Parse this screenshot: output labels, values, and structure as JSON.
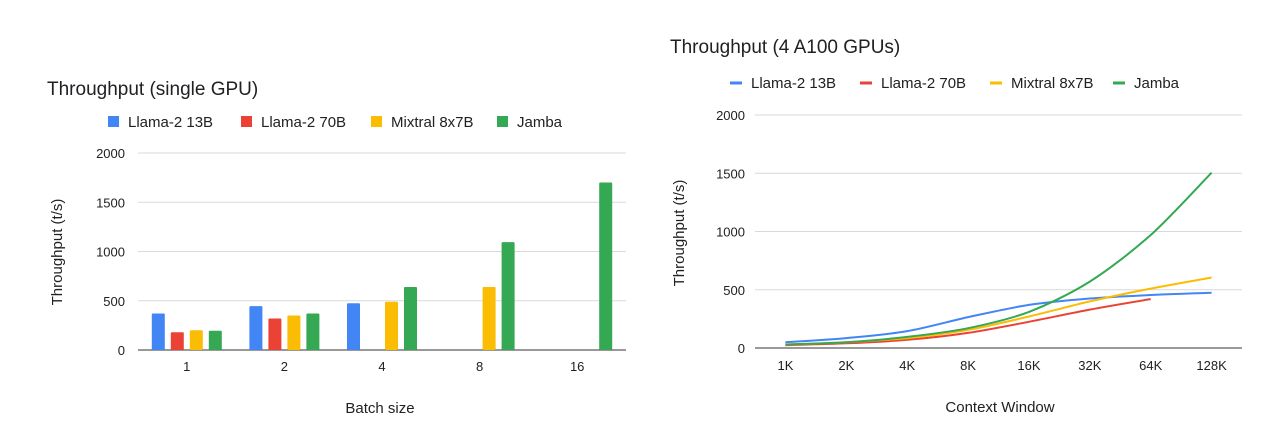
{
  "chart_data": [
    {
      "type": "bar",
      "title": "Throughput (single GPU)",
      "xlabel": "Batch size",
      "ylabel": "Throughput (t/s)",
      "ylim": [
        0,
        2000
      ],
      "yticks": [
        "0",
        "500",
        "1000",
        "1500",
        "2000"
      ],
      "categories": [
        "1",
        "2",
        "4",
        "8",
        "16"
      ],
      "legend_position": "top",
      "grid": true,
      "series": [
        {
          "name": "Llama-2 13B",
          "color": "#4285F4",
          "values": [
            370,
            445,
            475,
            null,
            null
          ]
        },
        {
          "name": "Llama-2 70B",
          "color": "#EA4335",
          "values": [
            180,
            320,
            null,
            null,
            null
          ]
        },
        {
          "name": "Mixtral 8x7B",
          "color": "#FBBC04",
          "values": [
            200,
            350,
            490,
            640,
            null
          ]
        },
        {
          "name": "Jamba",
          "color": "#34A853",
          "values": [
            195,
            370,
            640,
            1095,
            1700
          ]
        }
      ]
    },
    {
      "type": "line",
      "title": "Throughput (4 A100 GPUs)",
      "xlabel": "Context Window",
      "ylabel": "Throughput (t/s)",
      "ylim": [
        0,
        2000
      ],
      "yticks": [
        "0",
        "500",
        "1000",
        "1500",
        "2000"
      ],
      "categories": [
        "1K",
        "2K",
        "4K",
        "8K",
        "16K",
        "32K",
        "64K",
        "128K"
      ],
      "legend_position": "top",
      "grid": true,
      "series": [
        {
          "name": "Llama-2 13B",
          "color": "#4285F4",
          "values": [
            50,
            85,
            145,
            265,
            370,
            425,
            455,
            475
          ]
        },
        {
          "name": "Llama-2 70B",
          "color": "#EA4335",
          "values": [
            25,
            40,
            70,
            130,
            225,
            330,
            420,
            null
          ]
        },
        {
          "name": "Mixtral 8x7B",
          "color": "#FBBC04",
          "values": [
            30,
            50,
            85,
            155,
            270,
            400,
            510,
            605
          ]
        },
        {
          "name": "Jamba",
          "color": "#34A853",
          "values": [
            30,
            50,
            95,
            170,
            310,
            570,
            970,
            1505
          ]
        }
      ]
    }
  ]
}
